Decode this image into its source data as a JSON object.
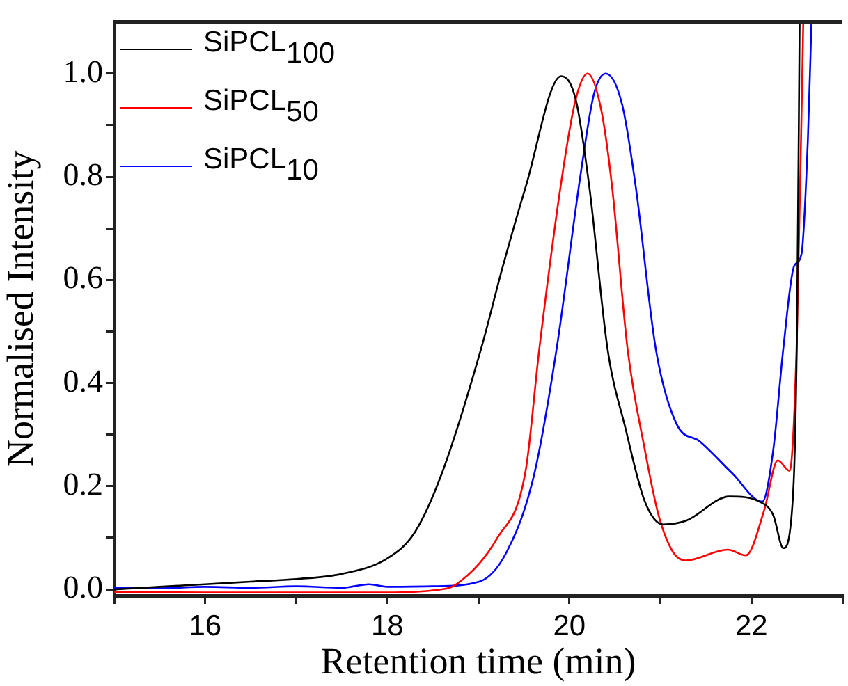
{
  "chart_data": {
    "type": "line",
    "xlabel": "Retention time (min)",
    "ylabel": "Normalised Intensity",
    "xlim": [
      15,
      23
    ],
    "ylim": [
      -0.012,
      1.1
    ],
    "xticks": [
      {
        "value": 15,
        "label": null
      },
      16,
      {
        "value": 17,
        "label": null
      },
      18,
      {
        "value": 19,
        "label": null
      },
      20,
      {
        "value": 21,
        "label": null
      },
      22,
      {
        "value": 23,
        "label": null
      }
    ],
    "yticks": [
      {
        "value": 0,
        "label": "0.0"
      },
      {
        "value": 0.1,
        "label": null
      },
      {
        "value": 0.2,
        "label": "0.2"
      },
      {
        "value": 0.3,
        "label": null
      },
      {
        "value": 0.4,
        "label": "0.4"
      },
      {
        "value": 0.5,
        "label": null
      },
      {
        "value": 0.6,
        "label": "0.6"
      },
      {
        "value": 0.7,
        "label": null
      },
      {
        "value": 0.8,
        "label": "0.8"
      },
      {
        "value": 0.9,
        "label": null
      },
      {
        "value": 1,
        "label": "1.0"
      }
    ],
    "legend": "top left",
    "grid": false,
    "marker": "none",
    "line_style": "solid",
    "series": [
      {
        "name": "SiPCL$_{100}$",
        "color": "#000000",
        "x": [
          15,
          15.5,
          16,
          16.5,
          17,
          17.5,
          18,
          18.3,
          18.6,
          19.03,
          19.26,
          19.52,
          19.91,
          20.07,
          20.22,
          20.42,
          20.62,
          20.83,
          21.03,
          21.28,
          21.76,
          22.09,
          22.24,
          22.35,
          22.44,
          22.5,
          22.53
        ],
        "values": [
          0,
          0.005,
          0.01,
          0.015,
          0.02,
          0.03,
          0.06,
          0.11,
          0.225,
          0.466,
          0.62,
          0.78,
          0.995,
          0.95,
          0.78,
          0.466,
          0.31,
          0.17,
          0.126,
          0.133,
          0.18,
          0.17,
          0.144,
          0.08,
          0.14,
          0.49,
          1.1
        ]
      },
      {
        "name": "SiPCL$_{50}$",
        "color": "#ff0000",
        "x": [
          15,
          16,
          17,
          18,
          18.5,
          18.76,
          19.21,
          19.52,
          19.67,
          19.92,
          20.07,
          20.2,
          20.35,
          20.47,
          20.64,
          20.83,
          20.98,
          21.14,
          21.28,
          21.74,
          21.94,
          22.14,
          22.29,
          22.42,
          22.5,
          22.57
        ],
        "values": [
          -0.005,
          -0.006,
          -0.006,
          -0.006,
          -0.002,
          0.01,
          0.1,
          0.23,
          0.466,
          0.8,
          0.95,
          1,
          0.93,
          0.78,
          0.466,
          0.27,
          0.144,
          0.072,
          0.056,
          0.077,
          0.066,
          0.153,
          0.25,
          0.23,
          0.49,
          1.1
        ]
      },
      {
        "name": "SiPCL$_{10}$",
        "color": "#0000ff",
        "x": [
          15,
          15.5,
          16,
          16.5,
          17,
          17.5,
          17.8,
          18,
          18.5,
          19.01,
          19.31,
          19.61,
          19.86,
          20.12,
          20.27,
          20.4,
          20.58,
          20.73,
          20.95,
          21.18,
          21.43,
          21.79,
          22.12,
          22.24,
          22.35,
          22.47,
          22.55,
          22.62,
          22.66
        ],
        "values": [
          0.003,
          0.002,
          0.005,
          0.003,
          0.006,
          0.003,
          0.01,
          0.005,
          0.006,
          0.015,
          0.072,
          0.22,
          0.466,
          0.8,
          0.96,
          1,
          0.94,
          0.78,
          0.466,
          0.32,
          0.287,
          0.225,
          0.17,
          0.27,
          0.466,
          0.627,
          0.65,
          0.87,
          1.1
        ]
      }
    ]
  }
}
